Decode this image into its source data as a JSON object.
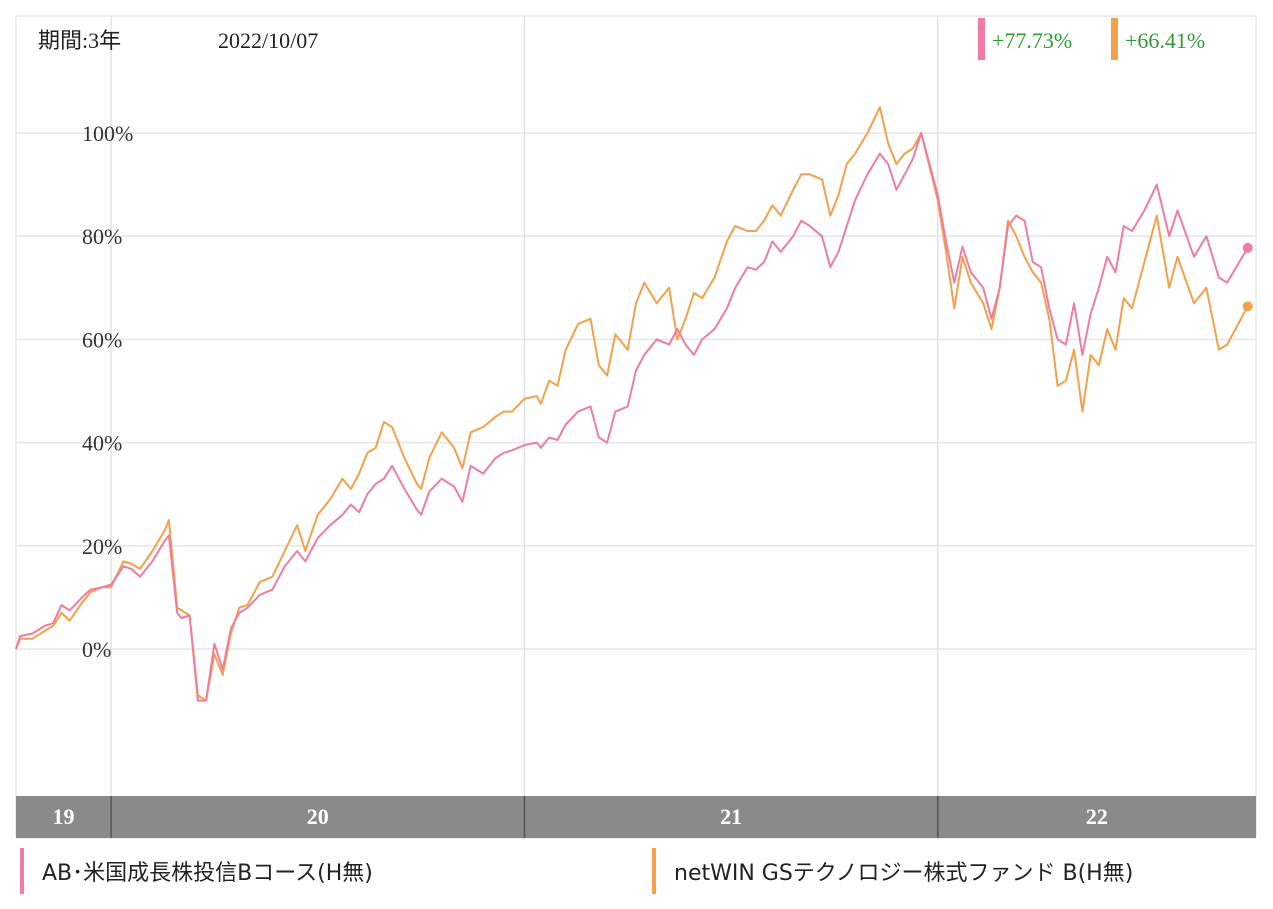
{
  "header": {
    "period_label": "期間:3年",
    "date": "2022/10/07"
  },
  "chart_data": {
    "type": "line",
    "title": "",
    "xlabel": "",
    "ylabel": "",
    "x_tick_labels": [
      "19",
      "20",
      "21",
      "22"
    ],
    "y_tick_labels": [
      "0%",
      "20%",
      "40%",
      "60%",
      "80%",
      "100%"
    ],
    "y_ticks": [
      0,
      20,
      40,
      60,
      80,
      100
    ],
    "xlim": [
      2019.77,
      2022.77
    ],
    "ylim": [
      -30,
      125
    ],
    "grid": true,
    "legend_position": "bottom",
    "series": [
      {
        "name": "AB･米国成長株投信Bコース(H無)",
        "color": "#f07ca2",
        "end_label": "+77.73%",
        "points": [
          [
            2019.77,
            0
          ],
          [
            2019.78,
            2.5
          ],
          [
            2019.81,
            3
          ],
          [
            2019.84,
            4.5
          ],
          [
            2019.86,
            5
          ],
          [
            2019.88,
            8.5
          ],
          [
            2019.9,
            7.5
          ],
          [
            2019.93,
            10
          ],
          [
            2019.95,
            11.5
          ],
          [
            2019.98,
            12
          ],
          [
            2020.0,
            12.5
          ],
          [
            2020.03,
            16
          ],
          [
            2020.05,
            15.5
          ],
          [
            2020.07,
            14
          ],
          [
            2020.1,
            17
          ],
          [
            2020.13,
            21
          ],
          [
            2020.14,
            22
          ],
          [
            2020.16,
            7
          ],
          [
            2020.17,
            6
          ],
          [
            2020.19,
            6.5
          ],
          [
            2020.21,
            -10
          ],
          [
            2020.23,
            -10
          ],
          [
            2020.25,
            1
          ],
          [
            2020.27,
            -4
          ],
          [
            2020.29,
            4
          ],
          [
            2020.31,
            7
          ],
          [
            2020.33,
            8
          ],
          [
            2020.36,
            10.5
          ],
          [
            2020.39,
            11.5
          ],
          [
            2020.42,
            16
          ],
          [
            2020.45,
            19
          ],
          [
            2020.47,
            17
          ],
          [
            2020.5,
            21.5
          ],
          [
            2020.53,
            24
          ],
          [
            2020.56,
            26
          ],
          [
            2020.58,
            28
          ],
          [
            2020.6,
            26.5
          ],
          [
            2020.62,
            30
          ],
          [
            2020.64,
            32
          ],
          [
            2020.66,
            33
          ],
          [
            2020.68,
            35.5
          ],
          [
            2020.71,
            31
          ],
          [
            2020.74,
            27
          ],
          [
            2020.75,
            26
          ],
          [
            2020.77,
            30.5
          ],
          [
            2020.8,
            33
          ],
          [
            2020.83,
            31.5
          ],
          [
            2020.85,
            28.5
          ],
          [
            2020.87,
            35.5
          ],
          [
            2020.9,
            34
          ],
          [
            2020.93,
            37
          ],
          [
            2020.95,
            38
          ],
          [
            2020.97,
            38.5
          ],
          [
            2021.0,
            39.5
          ],
          [
            2021.03,
            40
          ],
          [
            2021.04,
            39
          ],
          [
            2021.06,
            41
          ],
          [
            2021.08,
            40.5
          ],
          [
            2021.1,
            43.5
          ],
          [
            2021.13,
            46
          ],
          [
            2021.16,
            47
          ],
          [
            2021.18,
            41
          ],
          [
            2021.2,
            40
          ],
          [
            2021.22,
            46
          ],
          [
            2021.25,
            47
          ],
          [
            2021.27,
            54
          ],
          [
            2021.29,
            57
          ],
          [
            2021.32,
            60
          ],
          [
            2021.35,
            59
          ],
          [
            2021.37,
            62
          ],
          [
            2021.39,
            59
          ],
          [
            2021.41,
            57
          ],
          [
            2021.43,
            60
          ],
          [
            2021.46,
            62
          ],
          [
            2021.49,
            66
          ],
          [
            2021.51,
            70
          ],
          [
            2021.54,
            74
          ],
          [
            2021.56,
            73.5
          ],
          [
            2021.58,
            75
          ],
          [
            2021.6,
            79
          ],
          [
            2021.62,
            77
          ],
          [
            2021.65,
            80
          ],
          [
            2021.67,
            83
          ],
          [
            2021.69,
            82
          ],
          [
            2021.72,
            80
          ],
          [
            2021.74,
            74
          ],
          [
            2021.76,
            77
          ],
          [
            2021.78,
            82
          ],
          [
            2021.8,
            87
          ],
          [
            2021.83,
            92
          ],
          [
            2021.86,
            96
          ],
          [
            2021.88,
            94
          ],
          [
            2021.9,
            89
          ],
          [
            2021.92,
            92
          ],
          [
            2021.94,
            95
          ],
          [
            2021.96,
            100
          ],
          [
            2022.0,
            88
          ],
          [
            2022.02,
            79
          ],
          [
            2022.04,
            71
          ],
          [
            2022.06,
            78
          ],
          [
            2022.08,
            73
          ],
          [
            2022.11,
            70
          ],
          [
            2022.13,
            64
          ],
          [
            2022.15,
            70
          ],
          [
            2022.17,
            82
          ],
          [
            2022.19,
            84
          ],
          [
            2022.21,
            83
          ],
          [
            2022.23,
            75
          ],
          [
            2022.25,
            74
          ],
          [
            2022.27,
            66
          ],
          [
            2022.29,
            60
          ],
          [
            2022.31,
            59
          ],
          [
            2022.33,
            67
          ],
          [
            2022.35,
            57
          ],
          [
            2022.37,
            65
          ],
          [
            2022.39,
            70
          ],
          [
            2022.41,
            76
          ],
          [
            2022.43,
            73
          ],
          [
            2022.45,
            82
          ],
          [
            2022.47,
            81
          ],
          [
            2022.5,
            85
          ],
          [
            2022.53,
            90
          ],
          [
            2022.56,
            80
          ],
          [
            2022.58,
            85
          ],
          [
            2022.62,
            76
          ],
          [
            2022.65,
            80
          ],
          [
            2022.68,
            72
          ],
          [
            2022.7,
            71
          ],
          [
            2022.75,
            77.73
          ]
        ]
      },
      {
        "name": "netWIN GSテクノロジー株式ファンド B(H無)",
        "color": "#f5a04a",
        "end_label": "+66.41%",
        "points": [
          [
            2019.77,
            0
          ],
          [
            2019.78,
            2
          ],
          [
            2019.81,
            2
          ],
          [
            2019.84,
            3.5
          ],
          [
            2019.86,
            4.5
          ],
          [
            2019.88,
            7
          ],
          [
            2019.9,
            5.5
          ],
          [
            2019.93,
            9
          ],
          [
            2019.95,
            11
          ],
          [
            2019.98,
            12
          ],
          [
            2020.0,
            12
          ],
          [
            2020.03,
            17
          ],
          [
            2020.05,
            16.5
          ],
          [
            2020.07,
            15.5
          ],
          [
            2020.1,
            19
          ],
          [
            2020.13,
            23
          ],
          [
            2020.14,
            25
          ],
          [
            2020.16,
            8
          ],
          [
            2020.17,
            7.5
          ],
          [
            2020.19,
            6.5
          ],
          [
            2020.21,
            -9
          ],
          [
            2020.23,
            -10
          ],
          [
            2020.25,
            -1
          ],
          [
            2020.27,
            -5
          ],
          [
            2020.29,
            3
          ],
          [
            2020.31,
            8
          ],
          [
            2020.33,
            8.5
          ],
          [
            2020.36,
            13
          ],
          [
            2020.39,
            14
          ],
          [
            2020.42,
            19
          ],
          [
            2020.45,
            24
          ],
          [
            2020.47,
            19
          ],
          [
            2020.5,
            26
          ],
          [
            2020.53,
            29
          ],
          [
            2020.56,
            33
          ],
          [
            2020.58,
            31
          ],
          [
            2020.6,
            34
          ],
          [
            2020.62,
            38
          ],
          [
            2020.64,
            39
          ],
          [
            2020.66,
            44
          ],
          [
            2020.68,
            43
          ],
          [
            2020.71,
            37
          ],
          [
            2020.74,
            32
          ],
          [
            2020.75,
            31
          ],
          [
            2020.77,
            37
          ],
          [
            2020.8,
            42
          ],
          [
            2020.83,
            39
          ],
          [
            2020.85,
            35
          ],
          [
            2020.87,
            42
          ],
          [
            2020.9,
            43
          ],
          [
            2020.93,
            45
          ],
          [
            2020.95,
            46
          ],
          [
            2020.97,
            46
          ],
          [
            2021.0,
            48.5
          ],
          [
            2021.03,
            49
          ],
          [
            2021.04,
            47.5
          ],
          [
            2021.06,
            52
          ],
          [
            2021.08,
            51
          ],
          [
            2021.1,
            58
          ],
          [
            2021.13,
            63
          ],
          [
            2021.16,
            64
          ],
          [
            2021.18,
            55
          ],
          [
            2021.2,
            53
          ],
          [
            2021.22,
            61
          ],
          [
            2021.25,
            58
          ],
          [
            2021.27,
            67
          ],
          [
            2021.29,
            71
          ],
          [
            2021.32,
            67
          ],
          [
            2021.35,
            70
          ],
          [
            2021.37,
            60
          ],
          [
            2021.39,
            64
          ],
          [
            2021.41,
            69
          ],
          [
            2021.43,
            68
          ],
          [
            2021.46,
            72
          ],
          [
            2021.49,
            79
          ],
          [
            2021.51,
            82
          ],
          [
            2021.54,
            81
          ],
          [
            2021.56,
            81
          ],
          [
            2021.58,
            83
          ],
          [
            2021.6,
            86
          ],
          [
            2021.62,
            84
          ],
          [
            2021.65,
            89
          ],
          [
            2021.67,
            92
          ],
          [
            2021.69,
            92
          ],
          [
            2021.72,
            91
          ],
          [
            2021.74,
            84
          ],
          [
            2021.76,
            88
          ],
          [
            2021.78,
            94
          ],
          [
            2021.8,
            96
          ],
          [
            2021.83,
            100
          ],
          [
            2021.86,
            105
          ],
          [
            2021.88,
            98
          ],
          [
            2021.9,
            94
          ],
          [
            2021.92,
            96
          ],
          [
            2021.94,
            97
          ],
          [
            2021.96,
            100
          ],
          [
            2022.0,
            87
          ],
          [
            2022.02,
            77
          ],
          [
            2022.04,
            66
          ],
          [
            2022.06,
            76
          ],
          [
            2022.08,
            71
          ],
          [
            2022.11,
            67
          ],
          [
            2022.13,
            62
          ],
          [
            2022.15,
            70
          ],
          [
            2022.17,
            83
          ],
          [
            2022.19,
            80
          ],
          [
            2022.21,
            76
          ],
          [
            2022.23,
            73
          ],
          [
            2022.25,
            71
          ],
          [
            2022.27,
            64
          ],
          [
            2022.29,
            51
          ],
          [
            2022.31,
            52
          ],
          [
            2022.33,
            58
          ],
          [
            2022.35,
            46
          ],
          [
            2022.37,
            57
          ],
          [
            2022.39,
            55
          ],
          [
            2022.41,
            62
          ],
          [
            2022.43,
            58
          ],
          [
            2022.45,
            68
          ],
          [
            2022.47,
            66
          ],
          [
            2022.5,
            75
          ],
          [
            2022.53,
            84
          ],
          [
            2022.56,
            70
          ],
          [
            2022.58,
            76
          ],
          [
            2022.62,
            67
          ],
          [
            2022.65,
            70
          ],
          [
            2022.68,
            58
          ],
          [
            2022.7,
            59
          ],
          [
            2022.75,
            66.41
          ]
        ]
      }
    ]
  },
  "legend": {
    "item1": "AB･米国成長株投信Bコース(H無)",
    "item2": "netWIN GSテクノロジー株式ファンド B(H無)"
  }
}
